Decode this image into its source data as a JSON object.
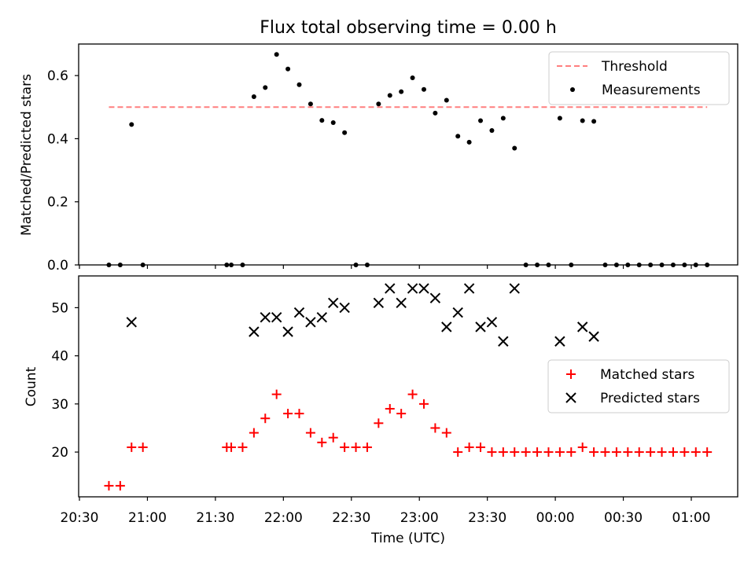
{
  "figure": {
    "title": "Flux total observing time = 0.00 h",
    "xlabel": "Time (UTC)"
  },
  "chart_data": [
    {
      "type": "scatter",
      "title": "Flux total observing time = 0.00 h",
      "ylabel": "Matched/Predicted stars",
      "ylim": [
        0,
        0.7
      ],
      "yticks": [
        0.0,
        0.2,
        0.4,
        0.6
      ],
      "xlim": [
        "20:30",
        "01:00"
      ],
      "legend_position": "top-right",
      "threshold": {
        "name": "Threshold",
        "value": 0.5,
        "x_start": "20:43",
        "x_end": "01:07",
        "color": "#ff7f7f",
        "style": "dashed"
      },
      "series": [
        {
          "name": "Measurements",
          "color": "#000000",
          "marker": "dot",
          "points": [
            [
              "20:43",
              0
            ],
            [
              "20:48",
              0
            ],
            [
              "20:53",
              0.445
            ],
            [
              "20:58",
              0
            ],
            [
              "21:35",
              0
            ],
            [
              "21:37",
              0
            ],
            [
              "21:42",
              0
            ],
            [
              "21:47",
              0.533
            ],
            [
              "21:52",
              0.562
            ],
            [
              "21:57",
              0.667
            ],
            [
              "22:02",
              0.621
            ],
            [
              "22:07",
              0.571
            ],
            [
              "22:12",
              0.51
            ],
            [
              "22:17",
              0.458
            ],
            [
              "22:22",
              0.451
            ],
            [
              "22:27",
              0.419
            ],
            [
              "22:32",
              0
            ],
            [
              "22:37",
              0
            ],
            [
              "22:42",
              0.51
            ],
            [
              "22:47",
              0.537
            ],
            [
              "22:52",
              0.549
            ],
            [
              "22:57",
              0.593
            ],
            [
              "23:02",
              0.556
            ],
            [
              "23:07",
              0.481
            ],
            [
              "23:12",
              0.522
            ],
            [
              "23:17",
              0.408
            ],
            [
              "23:22",
              0.389
            ],
            [
              "23:27",
              0.457
            ],
            [
              "23:32",
              0.426
            ],
            [
              "23:37",
              0.465
            ],
            [
              "23:42",
              0.37
            ],
            [
              "23:47",
              0
            ],
            [
              "23:52",
              0
            ],
            [
              "23:57",
              0
            ],
            [
              "00:02",
              0.465
            ],
            [
              "00:07",
              0
            ],
            [
              "00:12",
              0.457
            ],
            [
              "00:17",
              0.455
            ],
            [
              "00:22",
              0
            ],
            [
              "00:27",
              0
            ],
            [
              "00:32",
              0
            ],
            [
              "00:37",
              0
            ],
            [
              "00:42",
              0
            ],
            [
              "00:47",
              0
            ],
            [
              "00:52",
              0
            ],
            [
              "00:57",
              0
            ],
            [
              "01:02",
              0
            ],
            [
              "01:07",
              0
            ]
          ]
        }
      ]
    },
    {
      "type": "scatter",
      "ylabel": "Count",
      "ylim": [
        10.7,
        56.6
      ],
      "yticks": [
        20,
        30,
        40,
        50
      ],
      "xticks": [
        "20:30",
        "21:00",
        "21:30",
        "22:00",
        "22:30",
        "23:00",
        "23:30",
        "00:00",
        "00:30",
        "01:00"
      ],
      "legend_position": "center-right",
      "series": [
        {
          "name": "Matched stars",
          "color": "#ff0000",
          "marker": "plus",
          "points": [
            [
              "20:43",
              13
            ],
            [
              "20:48",
              13
            ],
            [
              "20:53",
              21
            ],
            [
              "20:58",
              21
            ],
            [
              "21:35",
              21
            ],
            [
              "21:37",
              21
            ],
            [
              "21:42",
              21
            ],
            [
              "21:47",
              24
            ],
            [
              "21:52",
              27
            ],
            [
              "21:57",
              32
            ],
            [
              "22:02",
              28
            ],
            [
              "22:07",
              28
            ],
            [
              "22:12",
              24
            ],
            [
              "22:17",
              22
            ],
            [
              "22:22",
              23
            ],
            [
              "22:27",
              21
            ],
            [
              "22:32",
              21
            ],
            [
              "22:37",
              21
            ],
            [
              "22:42",
              26
            ],
            [
              "22:47",
              29
            ],
            [
              "22:52",
              28
            ],
            [
              "22:57",
              32
            ],
            [
              "23:02",
              30
            ],
            [
              "23:07",
              25
            ],
            [
              "23:12",
              24
            ],
            [
              "23:17",
              20
            ],
            [
              "23:22",
              21
            ],
            [
              "23:27",
              21
            ],
            [
              "23:32",
              20
            ],
            [
              "23:37",
              20
            ],
            [
              "23:42",
              20
            ],
            [
              "23:47",
              20
            ],
            [
              "23:52",
              20
            ],
            [
              "23:57",
              20
            ],
            [
              "00:02",
              20
            ],
            [
              "00:07",
              20
            ],
            [
              "00:12",
              21
            ],
            [
              "00:17",
              20
            ],
            [
              "00:22",
              20
            ],
            [
              "00:27",
              20
            ],
            [
              "00:32",
              20
            ],
            [
              "00:37",
              20
            ],
            [
              "00:42",
              20
            ],
            [
              "00:47",
              20
            ],
            [
              "00:52",
              20
            ],
            [
              "00:57",
              20
            ],
            [
              "01:02",
              20
            ],
            [
              "01:07",
              20
            ]
          ]
        },
        {
          "name": "Predicted stars",
          "color": "#000000",
          "marker": "x",
          "points": [
            [
              "20:53",
              47
            ],
            [
              "21:47",
              45
            ],
            [
              "21:52",
              48
            ],
            [
              "21:57",
              48
            ],
            [
              "22:02",
              45
            ],
            [
              "22:07",
              49
            ],
            [
              "22:12",
              47
            ],
            [
              "22:17",
              48
            ],
            [
              "22:22",
              51
            ],
            [
              "22:27",
              50
            ],
            [
              "22:42",
              51
            ],
            [
              "22:47",
              54
            ],
            [
              "22:52",
              51
            ],
            [
              "22:57",
              54
            ],
            [
              "23:02",
              54
            ],
            [
              "23:07",
              52
            ],
            [
              "23:12",
              46
            ],
            [
              "23:17",
              49
            ],
            [
              "23:22",
              54
            ],
            [
              "23:27",
              46
            ],
            [
              "23:32",
              47
            ],
            [
              "23:37",
              43
            ],
            [
              "23:42",
              54
            ],
            [
              "00:02",
              43
            ],
            [
              "00:12",
              46
            ],
            [
              "00:17",
              44
            ]
          ]
        }
      ]
    }
  ]
}
